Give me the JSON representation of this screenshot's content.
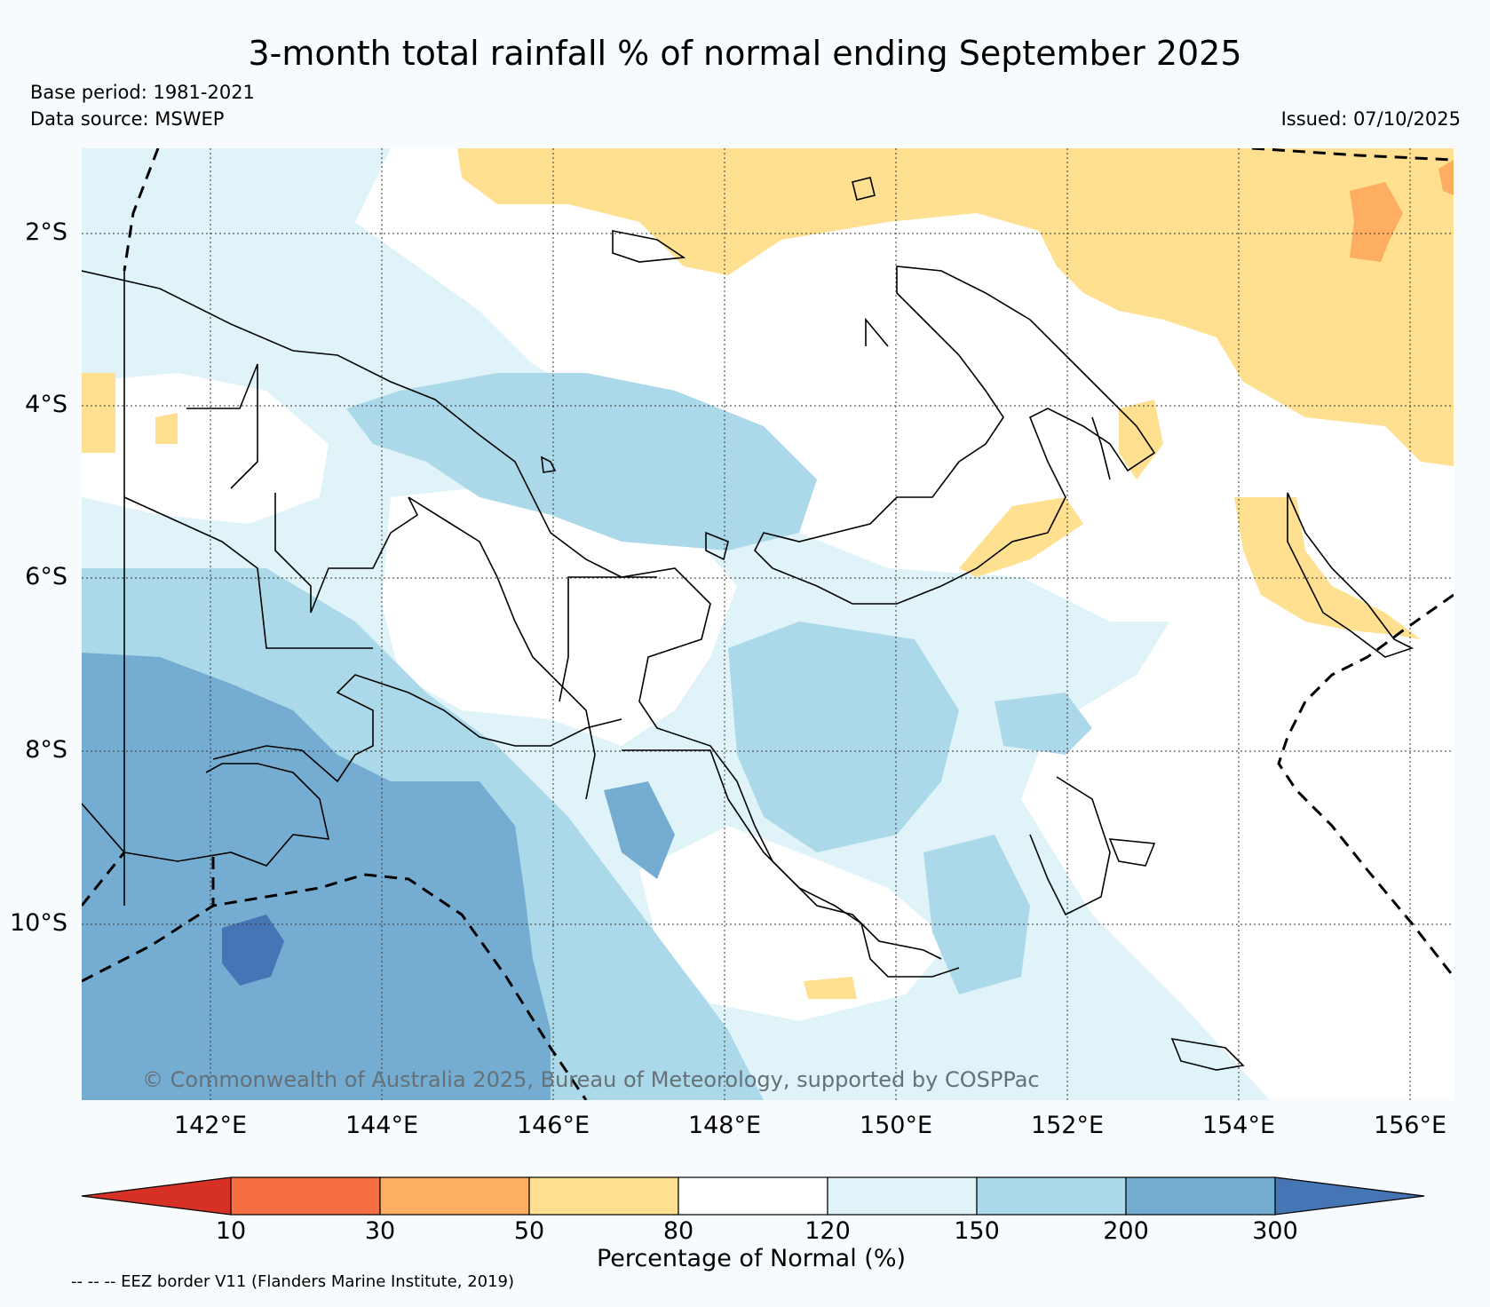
{
  "title": "3-month total rainfall % of normal ending September 2025",
  "base_period": "Base period: 1981-2021",
  "data_source": "Data source: MSWEP",
  "issued": "Issued: 07/10/2025",
  "copyright": "© Commonwealth of Australia 2025, Bureau of Meteorology, supported by COSPPac",
  "eez_note": "-- -- -- EEZ border V11 (Flanders Marine Institute, 2019)",
  "map": {
    "lon_labels": [
      "142°E",
      "144°E",
      "146°E",
      "148°E",
      "150°E",
      "152°E",
      "154°E",
      "156°E"
    ],
    "lat_labels": [
      "2°S",
      "4°S",
      "6°S",
      "8°S",
      "10°S"
    ]
  },
  "colorbar": {
    "label": "Percentage of Normal (%)",
    "ticks": [
      "10",
      "30",
      "50",
      "80",
      "120",
      "150",
      "200",
      "300"
    ],
    "colors": {
      "under": "#d73027",
      "c10_30": "#f46d43",
      "c30_50": "#fdae61",
      "c50_80": "#fee090",
      "c80_120": "#ffffff",
      "c120_150": "#e0f3f8",
      "c150_200": "#abd9e9",
      "c200_300": "#74add1",
      "over": "#4575b4"
    }
  }
}
